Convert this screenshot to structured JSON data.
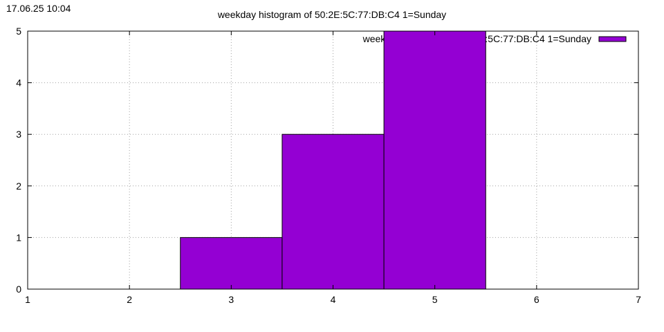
{
  "timestamp": "17.06.25 10:04",
  "chart_data": {
    "type": "bar",
    "title": "weekday histogram of 50:2E:5C:77:DB:C4 1=Sunday",
    "xlabel": "",
    "ylabel": "",
    "xlim": [
      1,
      7
    ],
    "ylim": [
      0,
      5
    ],
    "x_ticks": [
      "1",
      "2",
      "3",
      "4",
      "5",
      "6",
      "7"
    ],
    "y_ticks": [
      "0",
      "1",
      "2",
      "3",
      "4",
      "5"
    ],
    "grid": true,
    "legend_position": "top-right",
    "series": [
      {
        "name": "weekday histogram of 50:2E:5C:77:DB:C4 1=Sunday",
        "x": [
          3,
          4,
          5
        ],
        "values": [
          1,
          3,
          5
        ],
        "color": "#9400d3"
      }
    ]
  }
}
